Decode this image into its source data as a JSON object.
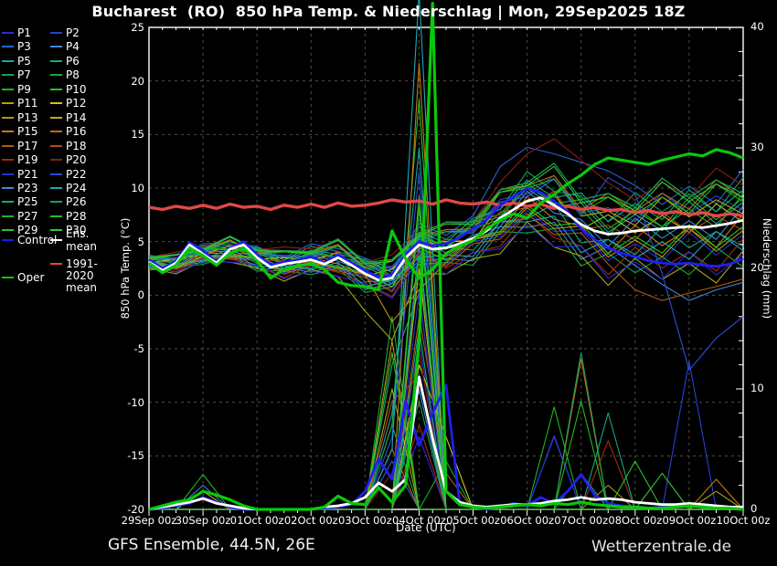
{
  "header": {
    "title": "Bucharest  (RO)  850 hPa Temp. & Niederschlag | Mon, 29Sep2025 18Z"
  },
  "footer": {
    "left": "GFS Ensemble, 44.5N, 26E",
    "right": "Wetterzentrale.de"
  },
  "legend": {
    "control_label": "Control",
    "ens_mean_label": "Ens. mean",
    "climate_label_line1": "1991-2020",
    "climate_label_line2": "mean",
    "oper_label": "Oper",
    "control_color": "#1f1fee",
    "ens_mean_color": "#ffffff",
    "climate_color": "#e04848",
    "oper_color": "#0ac80a"
  },
  "chart_data": {
    "type": "line",
    "title": "Bucharest  (RO)  850 hPa Temp. & Niederschlag | Mon, 29Sep2025 18Z",
    "grid": "on",
    "background": "#000000",
    "frame_color": "#ffffff",
    "grid_color": "#50503f",
    "x_axis": {
      "label": "Date (UTC)",
      "hours_span": 264,
      "tick_step_hours": 24,
      "minor_tick_hours": 6,
      "tick_labels": [
        "29Sep 00z",
        "30Sep 00z",
        "01Oct 00z",
        "02Oct 00z",
        "03Oct 00z",
        "04Oct 00z",
        "05Oct 00z",
        "06Oct 00z",
        "07Oct 00z",
        "08Oct 00z",
        "09Oct 00z",
        "10Oct 00z"
      ]
    },
    "y_left": {
      "label": "850 hPa Temp. (°C)",
      "min": -20,
      "max": 25,
      "ticks": [
        25,
        20,
        15,
        10,
        5,
        0,
        -5,
        -10,
        -15,
        -20
      ]
    },
    "y_right": {
      "label": "Niederschlag (mm)",
      "min": 0,
      "max": 40,
      "ticks": [
        0,
        10,
        20,
        30,
        40
      ]
    },
    "main_series": [
      {
        "name": "climate-mean-temp",
        "label": "1991-2020 mean",
        "axis": "left",
        "color": "#e04848",
        "width": 3.4,
        "step_h": 6,
        "values": [
          8.2,
          8.0,
          8.3,
          8.1,
          8.4,
          8.1,
          8.5,
          8.2,
          8.3,
          8.0,
          8.4,
          8.2,
          8.5,
          8.2,
          8.6,
          8.3,
          8.4,
          8.6,
          8.9,
          8.7,
          8.8,
          8.5,
          8.9,
          8.6,
          8.5,
          8.7,
          8.4,
          8.6,
          8.3,
          8.5,
          8.1,
          8.3,
          8.0,
          8.2,
          7.9,
          8.0,
          7.7,
          7.9,
          7.6,
          7.8,
          7.5,
          7.7,
          7.4,
          7.6,
          7.4
        ]
      },
      {
        "name": "control-precip",
        "label": "Control",
        "axis": "right",
        "color": "#1f1fee",
        "width": 2.8,
        "step_h": 6,
        "values": [
          0,
          0.1,
          0.3,
          0.5,
          1.0,
          0.6,
          0.2,
          0,
          0,
          0,
          0,
          0,
          0,
          0.1,
          0.2,
          0.4,
          1.5,
          4.2,
          2.5,
          9.0,
          5.3,
          8.0,
          10.3,
          0.5,
          0.2,
          0,
          0.2,
          0.5,
          0.3,
          1.0,
          0.5,
          1.5,
          2.9,
          1.2,
          0.5,
          0.3,
          0.2,
          0.1,
          0.2,
          0.3,
          0.4,
          0.3,
          0.2,
          0.1,
          0
        ]
      },
      {
        "name": "ens-mean-precip",
        "label": "Ens. mean",
        "axis": "right",
        "color": "#ffffff",
        "width": 2.8,
        "step_h": 6,
        "values": [
          0,
          0.2,
          0.4,
          0.6,
          0.9,
          0.5,
          0.3,
          0.1,
          0,
          0,
          0,
          0,
          0,
          0.2,
          0.3,
          0.5,
          1.0,
          2.2,
          1.5,
          2.5,
          11.0,
          5.9,
          1.5,
          0.6,
          0.3,
          0.2,
          0.3,
          0.4,
          0.4,
          0.5,
          0.7,
          0.8,
          1.0,
          0.8,
          0.9,
          0.8,
          0.6,
          0.5,
          0.4,
          0.4,
          0.5,
          0.4,
          0.3,
          0.2,
          0.2
        ]
      },
      {
        "name": "oper-precip",
        "label": "Oper",
        "axis": "right",
        "color": "#0ac80a",
        "width": 3.2,
        "step_h": 6,
        "values": [
          0,
          0.3,
          0.6,
          0.8,
          1.5,
          1.2,
          0.8,
          0.3,
          0,
          0,
          0,
          0,
          0,
          0.2,
          1.1,
          0.5,
          0.4,
          1.8,
          0.6,
          2.0,
          14,
          42,
          1.5,
          0.4,
          0.2,
          0.1,
          0.2,
          0.3,
          0.4,
          0.3,
          0.5,
          0.4,
          0.6,
          0.4,
          0.3,
          0.2,
          0.2,
          0.1,
          0.1,
          0.2,
          0.3,
          0.2,
          0.1,
          0.1,
          0
        ]
      },
      {
        "name": "control-temp",
        "label": "Control",
        "axis": "left",
        "color": "#1f1fee",
        "width": 2.8,
        "step_h": 6,
        "values": [
          3.3,
          2.5,
          3.2,
          4.9,
          4.2,
          3.1,
          4.4,
          5.0,
          3.8,
          2.8,
          3.1,
          3.3,
          3.6,
          3.0,
          3.8,
          3.0,
          2.3,
          1.7,
          1.9,
          3.8,
          5.0,
          4.6,
          4.8,
          5.4,
          6.2,
          7.0,
          8.4,
          9.2,
          10.0,
          9.6,
          8.8,
          7.8,
          6.2,
          5.2,
          4.4,
          3.9,
          3.6,
          3.2,
          3.0,
          2.9,
          3.0,
          2.8,
          2.7,
          2.9,
          3.4
        ]
      },
      {
        "name": "ens-mean-temp",
        "label": "Ens. mean",
        "axis": "left",
        "color": "#ffffff",
        "width": 2.8,
        "step_h": 6,
        "values": [
          3.1,
          2.3,
          3.0,
          4.7,
          3.8,
          3.0,
          4.3,
          4.7,
          3.5,
          2.6,
          2.9,
          3.1,
          3.3,
          2.9,
          3.5,
          2.8,
          2.0,
          1.4,
          1.6,
          3.5,
          4.7,
          4.3,
          4.4,
          4.8,
          5.3,
          6.0,
          7.2,
          8.0,
          8.8,
          9.1,
          8.4,
          7.6,
          6.6,
          6.0,
          5.7,
          5.8,
          6.0,
          6.1,
          6.2,
          6.3,
          6.4,
          6.3,
          6.5,
          6.7,
          7.0
        ]
      },
      {
        "name": "oper-temp",
        "label": "Oper",
        "axis": "left",
        "color": "#0ac80a",
        "width": 3.2,
        "step_h": 6,
        "values": [
          3.0,
          2.1,
          2.8,
          4.4,
          3.7,
          2.8,
          3.9,
          4.4,
          3.2,
          1.6,
          2.4,
          2.8,
          2.9,
          2.4,
          1.2,
          0.9,
          0.8,
          0.5,
          6.0,
          3.4,
          1.6,
          2.4,
          3.9,
          4.6,
          5.1,
          6.2,
          7.0,
          7.6,
          7.2,
          8.6,
          9.4,
          10.4,
          11.2,
          12.2,
          12.8,
          12.6,
          12.4,
          12.2,
          12.6,
          12.9,
          13.2,
          13.0,
          13.6,
          13.3,
          12.8
        ]
      }
    ],
    "members": {
      "step_h": 12,
      "base_temp": [
        3.1,
        3.0,
        3.8,
        4.3,
        3.5,
        2.9,
        3.3,
        3.5,
        2.0,
        1.6,
        4.7,
        4.4,
        5.3,
        7.2,
        8.8,
        8.4,
        6.6,
        5.7,
        6.0,
        6.2,
        6.4,
        6.5,
        7.0
      ],
      "spread": [
        0.6,
        0.7,
        0.8,
        0.9,
        1.0,
        1.1,
        1.2,
        1.3,
        1.4,
        1.5,
        1.6,
        1.8,
        2.0,
        2.3,
        2.6,
        2.9,
        3.1,
        3.3,
        3.4,
        3.5,
        3.6,
        3.7,
        3.8
      ],
      "wiggle": [
        0.7,
        -0.5,
        0.3,
        -0.7
      ],
      "list": [
        {
          "label": "P1",
          "color": "#2b2bd6",
          "a": -0.5,
          "p": 0,
          "r": {
            "10": 6
          }
        },
        {
          "label": "P2",
          "color": "#2b3fd6",
          "a": 0.6,
          "p": 1,
          "r": {
            "10": 14,
            "20": 12.3
          }
        },
        {
          "label": "P3",
          "color": "#2b63d0",
          "a": 0.9,
          "p": 2,
          "t": {
            "13": 12,
            "14": 13.8,
            "15": 13.2,
            "16": 12.4,
            "17": 11.6
          },
          "r": {
            "9": 4,
            "15": 6.1
          }
        },
        {
          "label": "P4",
          "color": "#3f87d6",
          "a": -0.7,
          "p": 3,
          "t": {
            "19": 1,
            "20": -0.5,
            "21": 0.5,
            "22": 1.2
          },
          "r": {
            "10": 22
          }
        },
        {
          "label": "P5",
          "color": "#17a3ab",
          "a": 0.3,
          "p": 0,
          "r": {
            "9": 8,
            "10": 30
          }
        },
        {
          "label": "P6",
          "color": "#15a87d",
          "a": -0.3,
          "p": 1,
          "r": {
            "9": 12,
            "10": 18
          }
        },
        {
          "label": "P7",
          "color": "#14a05c",
          "a": 0.7,
          "p": 2,
          "r": {
            "10": 9,
            "16": 3
          }
        },
        {
          "label": "P8",
          "color": "#13aa36",
          "a": -0.9,
          "p": 3,
          "r": {
            "9": 16,
            "11": 4
          }
        },
        {
          "label": "P9",
          "color": "#1fb41f",
          "a": 0.4,
          "p": 0,
          "r": {
            "2": 2.9,
            "10": 25
          }
        },
        {
          "label": "P10",
          "color": "#2abc2a",
          "a": 1.0,
          "p": 1,
          "r": {
            "9": 7,
            "10": 34
          }
        },
        {
          "label": "P11",
          "color": "#a8a414",
          "a": -1.1,
          "p": 2,
          "t": {
            "8": -1.5,
            "9": -4.2,
            "10": 2.0
          },
          "r": {
            "9": 10,
            "21": 1.5
          }
        },
        {
          "label": "P12",
          "color": "#c9c920",
          "a": 0.2,
          "p": 3,
          "r": {
            "10": 12,
            "11": 6
          }
        },
        {
          "label": "P13",
          "color": "#b99014",
          "a": -0.4,
          "p": 0,
          "t": {
            "9": -2.5,
            "10": 0.5
          },
          "r": {
            "9": 14,
            "17": 2
          }
        },
        {
          "label": "P14",
          "color": "#cfa616",
          "a": 0.5,
          "p": 1,
          "r": {
            "2": 1.5,
            "10": 20
          }
        },
        {
          "label": "P15",
          "color": "#c27d13",
          "a": -0.2,
          "p": 2,
          "r": {
            "10": 37,
            "21": 2.5
          }
        },
        {
          "label": "P16",
          "color": "#bc6c11",
          "a": 0.8,
          "p": 3,
          "r": {
            "9": 5,
            "16": 12.5
          }
        },
        {
          "label": "P17",
          "color": "#b25a0f",
          "a": -0.6,
          "p": 0,
          "t": {
            "18": 0.5,
            "19": -0.5,
            "20": 0.2,
            "21": 0.8,
            "22": 1.5
          },
          "r": {
            "10": 16,
            "11": 3
          }
        },
        {
          "label": "P18",
          "color": "#bc4710",
          "a": 0.1,
          "p": 1,
          "r": {
            "9": 9,
            "10": 11
          }
        },
        {
          "label": "P19",
          "color": "#a32b12",
          "a": -0.8,
          "p": 2,
          "r": {
            "10": 7,
            "17": 5.7
          }
        },
        {
          "label": "P20",
          "color": "#8f1d10",
          "a": 1.1,
          "p": 3,
          "t": {
            "14": 13.2,
            "15": 14.6,
            "16": 12.6
          },
          "r": {
            "9": 3,
            "10": 13
          }
        },
        {
          "label": "P21",
          "color": "#2b2bd6",
          "a": -1.0,
          "p": 0,
          "r": {
            "10": 18,
            "15": 6
          }
        },
        {
          "label": "P22",
          "color": "#2b4fd6",
          "a": 0.5,
          "p": 1,
          "t": {
            "17": 11,
            "18": 9.5,
            "19": 2,
            "20": -7,
            "21": -4,
            "22": -2
          },
          "r": {
            "9": 6,
            "10": 28
          }
        },
        {
          "label": "P23",
          "color": "#3f87d6",
          "a": 0.0,
          "p": 2,
          "r": {
            "2": 2,
            "10": 10
          }
        },
        {
          "label": "P24",
          "color": "#1ba8b7",
          "a": -0.5,
          "p": 3,
          "r": {
            "9": 5,
            "10": 43
          }
        },
        {
          "label": "P25",
          "color": "#15a87d",
          "a": 0.6,
          "p": 0,
          "r": {
            "10": 15,
            "17": 8
          }
        },
        {
          "label": "P26",
          "color": "#14a05c",
          "a": 1.0,
          "p": 1,
          "r": {
            "9": 7,
            "16": 13
          }
        },
        {
          "label": "P27",
          "color": "#1cb224",
          "a": 0.3,
          "p": 2,
          "r": {
            "10": 21,
            "15": 8.5
          }
        },
        {
          "label": "P28",
          "color": "#24ba1e",
          "a": 0.7,
          "p": 3,
          "r": {
            "10": 11,
            "16": 9
          }
        },
        {
          "label": "P29",
          "color": "#2cc228",
          "a": -0.3,
          "p": 0,
          "r": {
            "9": 13,
            "18": 4
          }
        },
        {
          "label": "P30",
          "color": "#33c833",
          "a": 0.9,
          "p": 1,
          "r": {
            "10": 26,
            "19": 3
          }
        }
      ]
    }
  }
}
